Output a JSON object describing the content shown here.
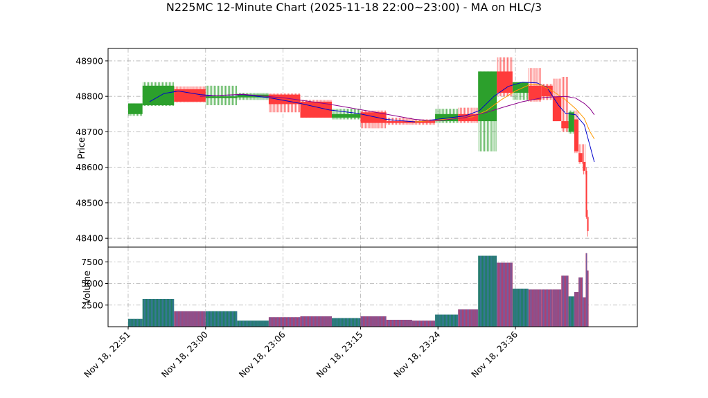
{
  "chart_data": {
    "type": "bar",
    "title": "N225MC 12-Minute Chart (2025-11-18 22:00~23:00) - MA on HLC/3",
    "ylabel": "Price",
    "volume_ylabel": "Volume",
    "ylim": [
      48375,
      48935
    ],
    "volume_ylim": [
      0,
      9200
    ],
    "yticks": [
      48400,
      48500,
      48600,
      48700,
      48800,
      48900
    ],
    "volume_yticks": [
      2500,
      5000,
      7500
    ],
    "xlim": [
      -14,
      355
    ],
    "xticks": [
      {
        "label": "Nov 18, 22:51",
        "x": 0
      },
      {
        "label": "Nov 18, 23:00",
        "x": 54
      },
      {
        "label": "Nov 18, 23:06",
        "x": 108
      },
      {
        "label": "Nov 18, 23:15",
        "x": 162
      },
      {
        "label": "Nov 18, 23:24",
        "x": 216
      },
      {
        "label": "Nov 18, 23:36",
        "x": 270
      }
    ],
    "grid": true,
    "up_color": "#2ca02c",
    "down_color": "#ff3b3b",
    "volume_up_color": "#1f7f5f",
    "volume_down_color": "#b04070",
    "ohlc": [
      {
        "x": 0,
        "w": 10,
        "open": 48750,
        "high": 48780,
        "low": 48745,
        "close": 48780,
        "volume": 900
      },
      {
        "x": 10,
        "w": 22,
        "open": 48775,
        "high": 48840,
        "low": 48773,
        "close": 48830,
        "volume": 3200
      },
      {
        "x": 32,
        "w": 22,
        "open": 48820,
        "high": 48828,
        "low": 48783,
        "close": 48785,
        "volume": 1800
      },
      {
        "x": 54,
        "w": 22,
        "open": 48795,
        "high": 48830,
        "low": 48775,
        "close": 48800,
        "volume": 1800
      },
      {
        "x": 76,
        "w": 22,
        "open": 48797,
        "high": 48810,
        "low": 48790,
        "close": 48805,
        "volume": 700
      },
      {
        "x": 98,
        "w": 22,
        "open": 48805,
        "high": 48808,
        "low": 48755,
        "close": 48778,
        "volume": 1100
      },
      {
        "x": 120,
        "w": 22,
        "open": 48785,
        "high": 48790,
        "low": 48740,
        "close": 48740,
        "volume": 1200
      },
      {
        "x": 142,
        "w": 20,
        "open": 48740,
        "high": 48765,
        "low": 48735,
        "close": 48750,
        "volume": 1000
      },
      {
        "x": 162,
        "w": 18,
        "open": 48755,
        "high": 48760,
        "low": 48710,
        "close": 48725,
        "volume": 1200
      },
      {
        "x": 180,
        "w": 18,
        "open": 48730,
        "high": 48740,
        "low": 48720,
        "close": 48725,
        "volume": 800
      },
      {
        "x": 198,
        "w": 16,
        "open": 48730,
        "high": 48735,
        "low": 48720,
        "close": 48725,
        "volume": 700
      },
      {
        "x": 214,
        "w": 16,
        "open": 48730,
        "high": 48765,
        "low": 48725,
        "close": 48750,
        "volume": 1400
      },
      {
        "x": 230,
        "w": 14,
        "open": 48750,
        "high": 48768,
        "low": 48725,
        "close": 48730,
        "volume": 2000
      },
      {
        "x": 244,
        "w": 13,
        "open": 48730,
        "high": 48870,
        "low": 48645,
        "close": 48870,
        "volume": 8200
      },
      {
        "x": 257,
        "w": 11,
        "open": 48870,
        "high": 48910,
        "low": 48800,
        "close": 48810,
        "volume": 7400
      },
      {
        "x": 268,
        "w": 11,
        "open": 48810,
        "high": 48840,
        "low": 48790,
        "close": 48840,
        "volume": 4400
      },
      {
        "x": 279,
        "w": 9,
        "open": 48830,
        "high": 48880,
        "low": 48785,
        "close": 48790,
        "volume": 4300
      },
      {
        "x": 288,
        "w": 8,
        "open": 48830,
        "high": 48835,
        "low": 48790,
        "close": 48800,
        "volume": 4300
      },
      {
        "x": 296,
        "w": 6,
        "open": 48800,
        "high": 48850,
        "low": 48730,
        "close": 48730,
        "volume": 4300
      },
      {
        "x": 302,
        "w": 5,
        "open": 48730,
        "high": 48855,
        "low": 48700,
        "close": 48710,
        "volume": 5900
      },
      {
        "x": 307,
        "w": 4,
        "open": 48700,
        "high": 48760,
        "low": 48695,
        "close": 48755,
        "volume": 3500
      },
      {
        "x": 311,
        "w": 3,
        "open": 48735,
        "high": 48760,
        "low": 48640,
        "close": 48645,
        "volume": 4000
      },
      {
        "x": 314,
        "w": 3,
        "open": 48640,
        "high": 48665,
        "low": 48610,
        "close": 48615,
        "volume": 5700
      },
      {
        "x": 317,
        "w": 2,
        "open": 48615,
        "high": 48665,
        "low": 48580,
        "close": 48590,
        "volume": 3400
      },
      {
        "x": 319,
        "w": 1,
        "open": 48590,
        "high": 48600,
        "low": 48455,
        "close": 48460,
        "volume": 8500
      },
      {
        "x": 320,
        "w": 1,
        "open": 48460,
        "high": 48480,
        "low": 48405,
        "close": 48420,
        "volume": 6500
      }
    ],
    "ma_series": [
      {
        "color": "#0000cc",
        "points": [
          [
            15,
            48785
          ],
          [
            25,
            48808
          ],
          [
            35,
            48815
          ],
          [
            50,
            48805
          ],
          [
            60,
            48802
          ],
          [
            80,
            48805
          ],
          [
            100,
            48795
          ],
          [
            120,
            48780
          ],
          [
            140,
            48762
          ],
          [
            160,
            48752
          ],
          [
            180,
            48735
          ],
          [
            200,
            48728
          ],
          [
            215,
            48735
          ],
          [
            235,
            48745
          ],
          [
            245,
            48760
          ],
          [
            255,
            48800
          ],
          [
            265,
            48828
          ],
          [
            275,
            48840
          ],
          [
            285,
            48838
          ],
          [
            292,
            48825
          ],
          [
            300,
            48775
          ],
          [
            305,
            48752
          ],
          [
            312,
            48748
          ],
          [
            318,
            48720
          ],
          [
            322,
            48660
          ],
          [
            325,
            48615
          ]
        ]
      },
      {
        "color": "#ff9900",
        "points": [
          [
            200,
            48728
          ],
          [
            220,
            48735
          ],
          [
            240,
            48742
          ],
          [
            250,
            48760
          ],
          [
            260,
            48790
          ],
          [
            270,
            48815
          ],
          [
            280,
            48833
          ],
          [
            288,
            48832
          ],
          [
            296,
            48815
          ],
          [
            305,
            48790
          ],
          [
            312,
            48765
          ],
          [
            318,
            48738
          ],
          [
            322,
            48700
          ],
          [
            325,
            48680
          ]
        ]
      },
      {
        "color": "#8b008b",
        "points": [
          [
            50,
            48800
          ],
          [
            80,
            48806
          ],
          [
            110,
            48795
          ],
          [
            140,
            48778
          ],
          [
            170,
            48757
          ],
          [
            200,
            48735
          ],
          [
            215,
            48731
          ],
          [
            235,
            48740
          ],
          [
            250,
            48755
          ],
          [
            262,
            48770
          ],
          [
            275,
            48785
          ],
          [
            290,
            48797
          ],
          [
            305,
            48800
          ],
          [
            312,
            48795
          ],
          [
            318,
            48780
          ],
          [
            322,
            48765
          ],
          [
            325,
            48748
          ]
        ]
      }
    ]
  }
}
